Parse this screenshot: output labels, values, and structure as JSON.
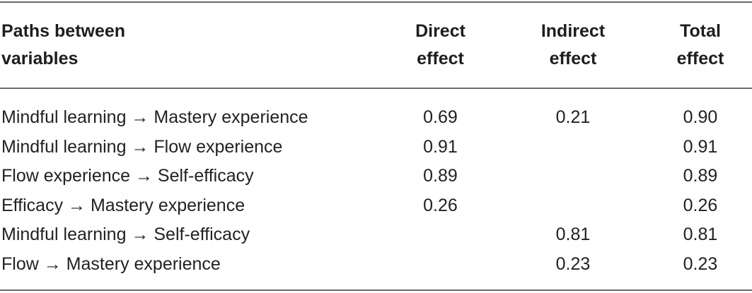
{
  "table": {
    "headers": {
      "path": [
        "Paths between",
        "variables"
      ],
      "direct": [
        "Direct",
        "effect"
      ],
      "indirect": [
        "Indirect",
        "effect"
      ],
      "total": [
        "Total",
        "effect"
      ]
    },
    "rows": [
      {
        "path": "Mindful learning → Mastery experience",
        "direct": "0.69",
        "indirect": "0.21",
        "total": "0.90"
      },
      {
        "path": "Mindful learning → Flow experience",
        "direct": "0.91",
        "indirect": "",
        "total": "0.91"
      },
      {
        "path": "Flow experience → Self-efficacy",
        "direct": "0.89",
        "indirect": "",
        "total": "0.89"
      },
      {
        "path": "Efficacy → Mastery experience",
        "direct": "0.26",
        "indirect": "",
        "total": "0.26"
      },
      {
        "path": "Mindful learning → Self-efficacy",
        "direct": "",
        "indirect": "0.81",
        "total": "0.81"
      },
      {
        "path": "Flow → Mastery experience",
        "direct": "",
        "indirect": "0.23",
        "total": "0.23"
      }
    ]
  }
}
